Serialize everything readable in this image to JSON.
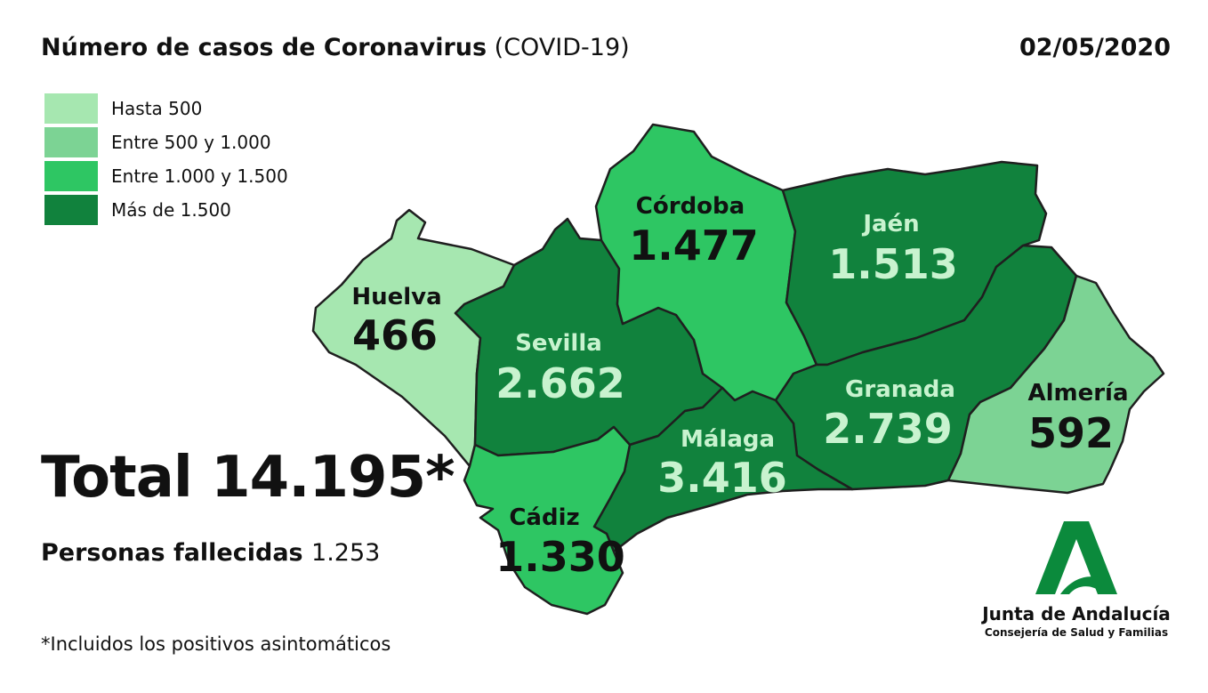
{
  "header": {
    "title_bold": "Número de casos de Coronavirus",
    "title_light": "(COVID-19)",
    "date": "02/05/2020"
  },
  "legend": [
    {
      "label": "Hasta 500",
      "color": "#a6e7b0"
    },
    {
      "label": "Entre 500 y 1.000",
      "color": "#7cd394"
    },
    {
      "label": "Entre 1.000 y 1.500",
      "color": "#2ec663"
    },
    {
      "label": "Más de 1.500",
      "color": "#11823d"
    }
  ],
  "provinces": [
    {
      "name": "Huelva",
      "cases": "466",
      "fill": "#a6e7b0",
      "text_color": "#111111"
    },
    {
      "name": "Sevilla",
      "cases": "2.662",
      "fill": "#11823d",
      "text_color": "#c8f3cf"
    },
    {
      "name": "Córdoba",
      "cases": "1.477",
      "fill": "#2ec663",
      "text_color": "#111111"
    },
    {
      "name": "Jaén",
      "cases": "1.513",
      "fill": "#11823d",
      "text_color": "#c8f3cf"
    },
    {
      "name": "Granada",
      "cases": "2.739",
      "fill": "#11823d",
      "text_color": "#c8f3cf"
    },
    {
      "name": "Almería",
      "cases": "592",
      "fill": "#7cd394",
      "text_color": "#111111"
    },
    {
      "name": "Málaga",
      "cases": "3.416",
      "fill": "#11823d",
      "text_color": "#c8f3cf"
    },
    {
      "name": "Cádiz",
      "cases": "1.330",
      "fill": "#2ec663",
      "text_color": "#111111"
    }
  ],
  "summary": {
    "total": "Total 14.195*",
    "deaths_label": "Personas fallecidas",
    "deaths_value": "1.253",
    "footnote": "*Incluidos los positivos asintomáticos"
  },
  "logo": {
    "org": "Junta de Andalucía",
    "dept": "Consejería de Salud y Familias",
    "color": "#0b8a3c"
  }
}
